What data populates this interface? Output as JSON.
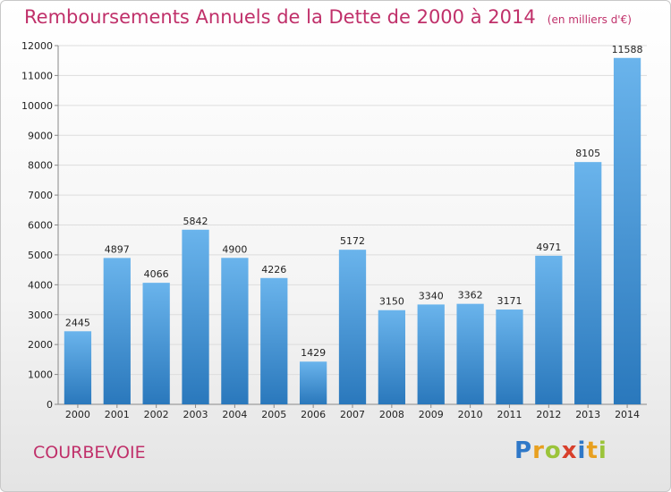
{
  "header": {
    "title": "Remboursements Annuels de la Dette de 2000 à 2014",
    "unit": "(en milliers d'€)"
  },
  "footer": {
    "city": "COURBEVOIE",
    "logo_letters": [
      "P",
      "r",
      "o",
      "x",
      "i",
      "t",
      "i"
    ],
    "logo_colors": [
      "#2f78c8",
      "#e8a020",
      "#9bc43a",
      "#d8402c",
      "#2f78c8",
      "#e8a020",
      "#9bc43a"
    ]
  },
  "colors": {
    "bar_top": "#6ab4ec",
    "bar_bottom": "#2a78bc",
    "text_accent": "#c0306a",
    "grid": "#dddddd"
  },
  "chart_data": {
    "type": "bar",
    "title": "Remboursements Annuels de la Dette de 2000 à 2014",
    "subtitle": "(en milliers d'€)",
    "xlabel": "",
    "ylabel": "",
    "categories": [
      "2000",
      "2001",
      "2002",
      "2003",
      "2004",
      "2005",
      "2006",
      "2007",
      "2008",
      "2009",
      "2010",
      "2011",
      "2012",
      "2013",
      "2014"
    ],
    "values": [
      2445,
      4897,
      4066,
      5842,
      4900,
      4226,
      1429,
      5172,
      3150,
      3340,
      3362,
      3171,
      4971,
      8105,
      11588
    ],
    "ylim": [
      0,
      12000
    ],
    "yticks": [
      0,
      1000,
      2000,
      3000,
      4000,
      5000,
      6000,
      7000,
      8000,
      9000,
      10000,
      11000,
      12000
    ],
    "grid": true,
    "legend": "none"
  }
}
